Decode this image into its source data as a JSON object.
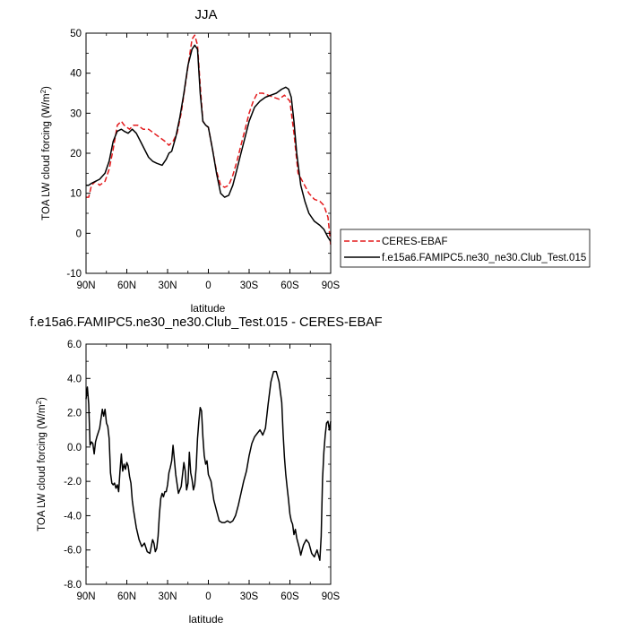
{
  "chart_data": [
    {
      "type": "line",
      "title": "JJA",
      "xlabel": "latitude",
      "ylabel": "TOA LW cloud forcing (W/m²)",
      "ylabel_main": "TOA LW cloud forcing (W/m",
      "ylabel_sup": "2",
      "ylabel_close": ")",
      "xlim": [
        90,
        -90
      ],
      "ylim": [
        -10,
        50
      ],
      "x_ticks": [
        90,
        60,
        30,
        0,
        -30,
        -60,
        -90
      ],
      "x_tick_labels": [
        "90N",
        "60N",
        "30N",
        "0",
        "30S",
        "60S",
        "90S"
      ],
      "y_ticks": [
        -10,
        0,
        10,
        20,
        30,
        40,
        50
      ],
      "y_tick_labels": [
        "-10",
        "0",
        "10",
        "20",
        "30",
        "40",
        "50"
      ],
      "legend": "right",
      "series": [
        {
          "name": "CERES-EBAF",
          "color": "#e31a1c",
          "dash": "dashed",
          "x": [
            90,
            88,
            86,
            83,
            80,
            76,
            73,
            70,
            67,
            64,
            62,
            58,
            55,
            52,
            48,
            44,
            40,
            36,
            32,
            29,
            26,
            23,
            20,
            17,
            14,
            12,
            10,
            8,
            6,
            4,
            2,
            0,
            -3,
            -6,
            -9,
            -12,
            -15,
            -18,
            -21,
            -24,
            -27,
            -30,
            -33,
            -36,
            -40,
            -44,
            -48,
            -52,
            -56,
            -60,
            -63,
            -66,
            -70,
            -74,
            -78,
            -82,
            -85,
            -88,
            -90
          ],
          "y": [
            9,
            9,
            12,
            13,
            12,
            13,
            16,
            21,
            27,
            28,
            27,
            26,
            27,
            27,
            26,
            26,
            25,
            24,
            23,
            22,
            23,
            25,
            30,
            37,
            44,
            48.5,
            49.5,
            47,
            37,
            28,
            27,
            26.5,
            21,
            15.5,
            12,
            11.5,
            12,
            14.5,
            18,
            22,
            26,
            30,
            33,
            35,
            35,
            34.5,
            34,
            33.5,
            34.5,
            33,
            25,
            15,
            12.5,
            10,
            8.5,
            8,
            7,
            4,
            -3
          ]
        },
        {
          "name": "f.e15a6.FAMIPC5.ne30_ne30.Club_Test.015",
          "color": "#000000",
          "dash": "solid",
          "x": [
            90,
            88,
            86,
            83,
            80,
            76,
            73,
            70,
            67,
            64,
            62,
            59,
            56,
            53,
            50,
            47,
            44,
            41,
            38,
            34,
            31,
            29,
            27,
            24,
            21,
            18,
            15,
            12,
            10,
            8,
            6,
            4,
            2,
            0,
            -3,
            -6,
            -9,
            -12,
            -15,
            -18,
            -21,
            -24,
            -27,
            -30,
            -34,
            -38,
            -42,
            -46,
            -50,
            -54,
            -57,
            -59,
            -61,
            -63,
            -65,
            -68,
            -71,
            -74,
            -78,
            -82,
            -85,
            -88,
            -90
          ],
          "y": [
            12,
            12,
            12.5,
            13,
            13.5,
            15,
            18,
            23,
            25.5,
            26,
            25.5,
            25,
            26,
            25,
            23,
            21,
            19,
            18,
            17.5,
            17,
            18.5,
            20,
            20.5,
            24,
            29,
            35,
            42,
            46,
            47,
            46,
            35,
            28,
            27,
            26.5,
            21,
            15,
            10,
            9,
            9.5,
            12,
            16,
            20,
            24,
            28,
            31.5,
            33,
            34,
            34.5,
            35,
            36,
            36.5,
            36,
            34,
            28,
            20,
            12,
            8,
            5,
            3,
            2,
            1,
            -1,
            -2
          ]
        }
      ]
    },
    {
      "type": "line",
      "title": "f.e15a6.FAMIPC5.ne30_ne30.Club_Test.015 - CERES-EBAF",
      "xlabel": "latitude",
      "ylabel": "TOA LW cloud forcing (W/m²)",
      "ylabel_main": "TOA LW cloud forcing (W/m",
      "ylabel_sup": "2",
      "ylabel_close": ")",
      "xlim": [
        90,
        -90
      ],
      "ylim": [
        -8,
        6
      ],
      "x_ticks": [
        90,
        60,
        30,
        0,
        -30,
        -60,
        -90
      ],
      "x_tick_labels": [
        "90N",
        "60N",
        "30N",
        "0",
        "30S",
        "60S",
        "90S"
      ],
      "y_ticks": [
        -8,
        -6,
        -4,
        -2,
        0,
        2,
        4,
        6
      ],
      "y_tick_labels": [
        "-8.0",
        "-6.0",
        "-4.0",
        "-2.0",
        "0.0",
        "2.0",
        "4.0",
        "6.0"
      ],
      "series": [
        {
          "name": "",
          "color": "#000000",
          "dash": "solid",
          "x": [
            90,
            89,
            88,
            87,
            86,
            85,
            84,
            83,
            82,
            80,
            78,
            77,
            76,
            75,
            74,
            73,
            72,
            71,
            70,
            69,
            68,
            67,
            66,
            65,
            64,
            63,
            62,
            61,
            60,
            59,
            58,
            57,
            56,
            55,
            53,
            51,
            49,
            47,
            45,
            43,
            41,
            40,
            39,
            38,
            37,
            36,
            35,
            34,
            33,
            32,
            31,
            30,
            29,
            28,
            27,
            26,
            24,
            22,
            20,
            19,
            18,
            17,
            16,
            15,
            14,
            13,
            12,
            11,
            10,
            9,
            8,
            7,
            6,
            5,
            4,
            3,
            2,
            1,
            0,
            -2,
            -4,
            -6,
            -8,
            -10,
            -12,
            -14,
            -16,
            -18,
            -20,
            -22,
            -24,
            -26,
            -28,
            -30,
            -32,
            -34,
            -36,
            -38,
            -40,
            -42,
            -44,
            -46,
            -48,
            -50,
            -52,
            -54,
            -55,
            -56,
            -57,
            -58,
            -59,
            -60,
            -61,
            -62,
            -63,
            -64,
            -65,
            -66,
            -67,
            -68,
            -69,
            -70,
            -72,
            -74,
            -76,
            -78,
            -80,
            -82,
            -83,
            -84,
            -85,
            -86,
            -87,
            -88,
            -89,
            -90
          ],
          "y": [
            2.8,
            3.5,
            2.5,
            0.1,
            0.3,
            0.2,
            -0.4,
            0.3,
            0.6,
            1.1,
            2.2,
            1.8,
            2.2,
            1.4,
            1.2,
            0.5,
            -1.5,
            -2.1,
            -2.2,
            -2.1,
            -2.4,
            -2.2,
            -2.6,
            -1.4,
            -0.4,
            -1.4,
            -1.0,
            -1.3,
            -0.9,
            -1.1,
            -1.7,
            -2.1,
            -3.1,
            -3.7,
            -4.7,
            -5.4,
            -5.8,
            -5.6,
            -6.1,
            -6.2,
            -5.4,
            -5.6,
            -6.1,
            -5.9,
            -5.2,
            -3.9,
            -3.0,
            -2.7,
            -2.9,
            -2.6,
            -2.6,
            -2.2,
            -1.5,
            -1.2,
            -0.8,
            0.1,
            -1.6,
            -2.7,
            -2.3,
            -1.6,
            -0.9,
            -1.4,
            -2.5,
            -2.1,
            -0.3,
            -1.5,
            -1.9,
            -2.5,
            -2.2,
            -1.2,
            0.5,
            1.5,
            2.3,
            2.1,
            0.6,
            -0.5,
            -1.0,
            -0.8,
            -1.6,
            -2.0,
            -3.1,
            -3.7,
            -4.3,
            -4.4,
            -4.4,
            -4.3,
            -4.4,
            -4.3,
            -4.0,
            -3.4,
            -2.7,
            -2.0,
            -1.4,
            -0.5,
            0.2,
            0.6,
            0.8,
            1.0,
            0.7,
            1.1,
            2.5,
            3.8,
            4.4,
            4.4,
            3.8,
            2.6,
            0.8,
            -0.6,
            -1.6,
            -2.4,
            -3.1,
            -3.9,
            -4.3,
            -4.5,
            -5.1,
            -4.8,
            -5.3,
            -5.6,
            -5.9,
            -6.3,
            -6.0,
            -5.7,
            -5.4,
            -5.6,
            -6.2,
            -6.4,
            -6.0,
            -6.6,
            -5.2,
            -1.9,
            -0.3,
            0.7,
            1.4,
            1.5,
            1.0,
            1.5
          ]
        }
      ]
    }
  ]
}
